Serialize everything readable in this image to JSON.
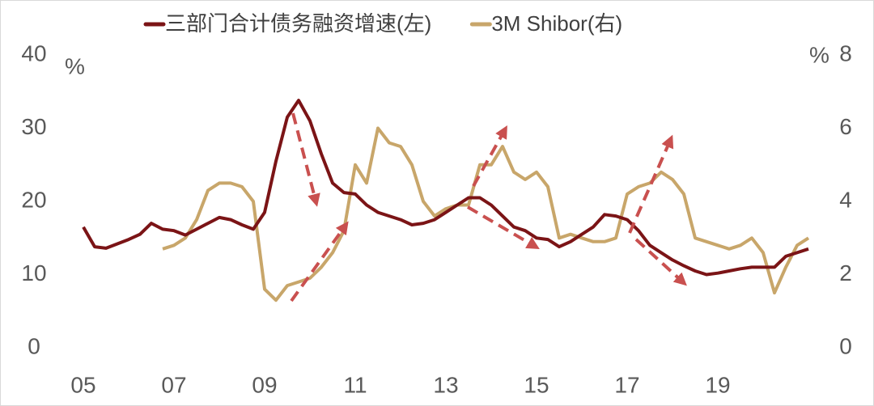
{
  "chart_data": {
    "type": "line",
    "legend": "top",
    "xlim": [
      2005,
      2021
    ],
    "xticks": [
      {
        "value": 2005,
        "label": "05"
      },
      {
        "value": 2007,
        "label": "07"
      },
      {
        "value": 2009,
        "label": "09"
      },
      {
        "value": 2011,
        "label": "11"
      },
      {
        "value": 2013,
        "label": "13"
      },
      {
        "value": 2015,
        "label": "15"
      },
      {
        "value": 2017,
        "label": "17"
      },
      {
        "value": 2019,
        "label": "19"
      }
    ],
    "ylim": [
      0,
      40
    ],
    "yticks": [
      0,
      10,
      20,
      30,
      40
    ],
    "y_unit": "%",
    "y2lim": [
      0,
      8
    ],
    "y2ticks": [
      0,
      2,
      4,
      6,
      8
    ],
    "y2_unit": "%",
    "x": [
      2005,
      2005.25,
      2005.5,
      2005.75,
      2006,
      2006.25,
      2006.5,
      2006.75,
      2007,
      2007.25,
      2007.5,
      2007.75,
      2008,
      2008.25,
      2008.5,
      2008.75,
      2009,
      2009.25,
      2009.5,
      2009.75,
      2010,
      2010.25,
      2010.5,
      2010.75,
      2011,
      2011.25,
      2011.5,
      2011.75,
      2012,
      2012.25,
      2012.5,
      2012.75,
      2013,
      2013.25,
      2013.5,
      2013.75,
      2014,
      2014.25,
      2014.5,
      2014.75,
      2015,
      2015.25,
      2015.5,
      2015.75,
      2016,
      2016.25,
      2016.5,
      2016.75,
      2017,
      2017.25,
      2017.5,
      2017.75,
      2018,
      2018.25,
      2018.5,
      2018.75,
      2019,
      2019.25,
      2019.5,
      2019.75,
      2020,
      2020.25,
      2020.5,
      2020.75,
      2021
    ],
    "series": [
      {
        "name": "三部门合计债务融资增速(左)",
        "color": "#7b1416",
        "axis": "y",
        "values": [
          16.5,
          13.8,
          13.6,
          14.2,
          14.8,
          15.5,
          17.0,
          16.2,
          16.0,
          15.4,
          16.2,
          17.0,
          17.8,
          17.5,
          16.8,
          16.2,
          18.5,
          25.5,
          31.5,
          33.8,
          31.0,
          26.5,
          22.5,
          21.2,
          21.0,
          19.5,
          18.5,
          18.0,
          17.5,
          16.8,
          17.0,
          17.5,
          18.5,
          19.5,
          20.5,
          20.5,
          19.5,
          18.0,
          16.5,
          16.0,
          15.0,
          14.8,
          13.8,
          14.5,
          15.5,
          16.5,
          18.2,
          18.0,
          17.5,
          16.0,
          14.0,
          13.0,
          12.0,
          11.2,
          10.5,
          10.0,
          10.2,
          10.5,
          10.8,
          11.0,
          11.0,
          11.0,
          12.5,
          13.0,
          13.5
        ]
      },
      {
        "name": "3M Shibor(右)",
        "color": "#c8a66a",
        "axis": "y2",
        "values": [
          null,
          null,
          null,
          null,
          null,
          null,
          null,
          2.7,
          2.8,
          3.0,
          3.5,
          4.3,
          4.5,
          4.5,
          4.4,
          4.0,
          1.6,
          1.3,
          1.7,
          1.8,
          1.9,
          2.2,
          2.6,
          3.2,
          5.0,
          4.5,
          6.0,
          5.6,
          5.5,
          5.0,
          4.0,
          3.6,
          3.8,
          3.9,
          3.9,
          5.0,
          5.0,
          5.5,
          4.8,
          4.6,
          4.8,
          4.4,
          3.0,
          3.1,
          3.0,
          2.9,
          2.9,
          3.0,
          4.2,
          4.4,
          4.5,
          4.8,
          4.6,
          4.2,
          3.0,
          2.9,
          2.8,
          2.7,
          2.8,
          3.0,
          2.6,
          1.5,
          2.2,
          2.8,
          3.0
        ]
      }
    ]
  }
}
